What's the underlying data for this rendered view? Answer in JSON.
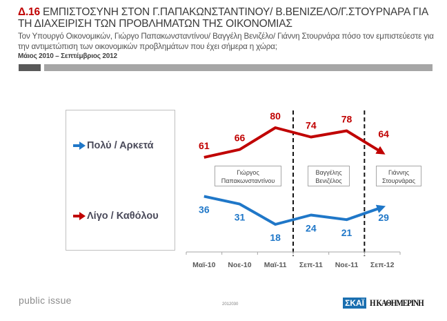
{
  "header": {
    "code": "Δ.16",
    "title": "ΕΜΠΙΣΤΟΣΥΝΗ ΣΤΟΝ Γ.ΠΑΠΑΚΩΝΣΤΑΝΤΙΝΟΥ/ Β.ΒΕΝΙΖΕΛΟ/Γ.ΣΤΟΥΡΝΑΡΑ ΓΙΑ ΤΗ ΔΙΑΧΕΙΡΙΣΗ ΤΩΝ ΠΡΟΒΛΗΜΑΤΩΝ ΤΗΣ ΟΙΚΟΝΟΜΙΑΣ",
    "question": "Τον Υπουργό Οικονομικών, Γιώργο Παπακωνσταντίνου/ Βαγγέλη Βενιζέλο/ Γιάννη Στουρνάρα πόσο τον εμπιστεύεστε για την αντιμετώπιση των οικονομικών προβλημάτων που έχει σήμερα η χώρα;",
    "period": "Μάιος 2010 – Σεπτέμβριος 2012"
  },
  "colors": {
    "red": "#c00000",
    "blue": "#1f77c8",
    "title_accent": "#c00000"
  },
  "chart_data": {
    "type": "line",
    "title": "",
    "xlabel": "",
    "ylabel": "",
    "categories": [
      "Μαϊ-10",
      "Νοε-10",
      "Μαϊ-11",
      "Σεπ-11",
      "Νοε-11",
      "Σεπ-12"
    ],
    "series": [
      {
        "name": "Πολύ / Αρκετά",
        "color": "#1f77c8",
        "values": [
          36,
          31,
          18,
          24,
          21,
          29
        ]
      },
      {
        "name": "Λίγο / Καθόλου",
        "color": "#c00000",
        "values": [
          61,
          66,
          80,
          74,
          78,
          64
        ]
      }
    ],
    "legend": [
      {
        "label": "Πολύ / Αρκετά",
        "color": "#1f77c8"
      },
      {
        "label": "Λίγο / Καθόλου",
        "color": "#c00000"
      }
    ],
    "legend_position": "left",
    "dividers_after_category": [
      "Μαϊ-11",
      "Νοε-11"
    ],
    "period_labels": [
      {
        "lines": [
          "Γιώργος",
          "Παπακωνσταντίνου"
        ]
      },
      {
        "lines": [
          "Βαγγέλης",
          "Βενιζέλος"
        ]
      },
      {
        "lines": [
          "Γιάννης",
          "Στουρνάρας"
        ]
      }
    ],
    "grid": false,
    "y_axis_visible": false
  },
  "footer": {
    "brand": "public issue",
    "code": "2012030",
    "logo_left": "ΣΚΑΪ",
    "logo_right": "Η ΚΑΘΗΜΕΡΙΝΗ"
  }
}
